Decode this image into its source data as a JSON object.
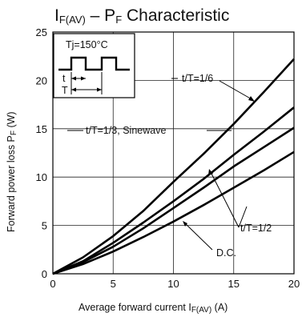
{
  "chart_data": {
    "type": "line",
    "title_main": "I",
    "title_sub1": "F(AV)",
    "title_mid": " – P",
    "title_sub2": "F",
    "title_rest": " Characteristic",
    "xlabel_main": "Average forward current  I",
    "xlabel_sub": "F(AV)",
    "xlabel_unit": " (A)",
    "ylabel_main": "Forward power loss  P",
    "ylabel_sub": "F",
    "ylabel_unit": " (W)",
    "xlim": [
      0,
      20
    ],
    "ylim": [
      0,
      25
    ],
    "x_ticks": [
      0,
      5,
      10,
      15,
      20
    ],
    "y_ticks": [
      0,
      5,
      10,
      15,
      20,
      25
    ],
    "grid": true,
    "series": [
      {
        "name": "t/T=1/6",
        "x": [
          0,
          2.5,
          5,
          7.5,
          10,
          12.5,
          15,
          17.5,
          20
        ],
        "values": [
          0,
          1.7,
          3.9,
          6.5,
          9.5,
          12.4,
          15.5,
          18.8,
          22.2
        ]
      },
      {
        "name": "t/T=1/3, Sinewave",
        "x": [
          0,
          2.5,
          5,
          7.5,
          10,
          12.5,
          15,
          17.5,
          20
        ],
        "values": [
          0,
          1.3,
          3.2,
          5.3,
          7.5,
          9.8,
          12.3,
          14.7,
          17.2
        ]
      },
      {
        "name": "t/T=1/2",
        "x": [
          0,
          2.5,
          5,
          7.5,
          10,
          12.5,
          15,
          17.5,
          20
        ],
        "values": [
          0,
          1.2,
          2.8,
          4.7,
          6.8,
          8.9,
          11.1,
          13.1,
          15.1
        ]
      },
      {
        "name": "D.C.",
        "x": [
          0,
          2.5,
          5,
          7.5,
          10,
          12.5,
          15,
          17.5,
          20
        ],
        "values": [
          0,
          1.0,
          2.3,
          3.8,
          5.4,
          7.1,
          8.9,
          10.7,
          12.6
        ]
      }
    ],
    "annotations": {
      "tj": "Tj=150°C",
      "t_label": "t",
      "T_label": "T",
      "l16": "t/T=1/6",
      "l13": "t/T=1/3, Sinewave",
      "l12": "t/T=1/2",
      "ldc": "D.C."
    }
  }
}
